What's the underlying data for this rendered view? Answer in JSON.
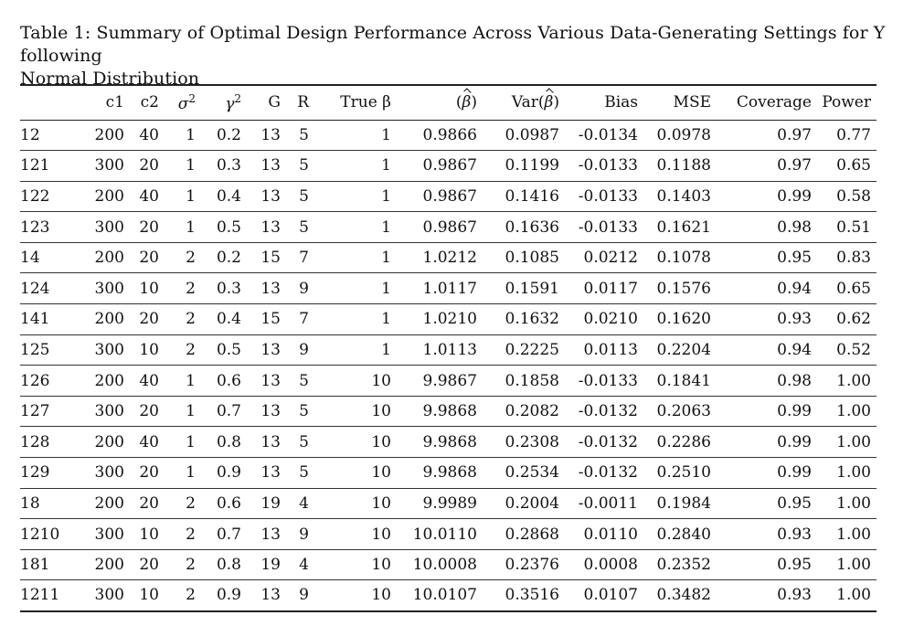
{
  "caption": {
    "line1": "Table 1: Summary of Optimal Design Performance Across Various Data-Generating Settings for Y following",
    "line2": "Normal Distribution"
  },
  "headers": {
    "id": "",
    "c1": "c1",
    "c2": "c2",
    "sigma2": "σ",
    "sigma2_exp": "2",
    "gamma2": "γ",
    "gamma2_exp": "2",
    "G": "G",
    "R": "R",
    "true_beta": "True β",
    "beta_hat_open": "(",
    "beta_hat_sym": "β",
    "beta_hat_close": ")",
    "var_prefix": "Var(",
    "var_sym": "β",
    "var_close": ")",
    "bias": "Bias",
    "mse": "MSE",
    "coverage": "Coverage",
    "power": "Power"
  },
  "rows": [
    {
      "id": "12",
      "c1": "200",
      "c2": "40",
      "sigma2": "1",
      "gamma2": "0.2",
      "G": "13",
      "R": "5",
      "true_beta": "1",
      "beta_hat": "0.9866",
      "var": "0.0987",
      "bias": "-0.0134",
      "mse": "0.0978",
      "coverage": "0.97",
      "power": "0.77"
    },
    {
      "id": "121",
      "c1": "300",
      "c2": "20",
      "sigma2": "1",
      "gamma2": "0.3",
      "G": "13",
      "R": "5",
      "true_beta": "1",
      "beta_hat": "0.9867",
      "var": "0.1199",
      "bias": "-0.0133",
      "mse": "0.1188",
      "coverage": "0.97",
      "power": "0.65"
    },
    {
      "id": "122",
      "c1": "200",
      "c2": "40",
      "sigma2": "1",
      "gamma2": "0.4",
      "G": "13",
      "R": "5",
      "true_beta": "1",
      "beta_hat": "0.9867",
      "var": "0.1416",
      "bias": "-0.0133",
      "mse": "0.1403",
      "coverage": "0.99",
      "power": "0.58"
    },
    {
      "id": "123",
      "c1": "300",
      "c2": "20",
      "sigma2": "1",
      "gamma2": "0.5",
      "G": "13",
      "R": "5",
      "true_beta": "1",
      "beta_hat": "0.9867",
      "var": "0.1636",
      "bias": "-0.0133",
      "mse": "0.1621",
      "coverage": "0.98",
      "power": "0.51"
    },
    {
      "id": "14",
      "c1": "200",
      "c2": "20",
      "sigma2": "2",
      "gamma2": "0.2",
      "G": "15",
      "R": "7",
      "true_beta": "1",
      "beta_hat": "1.0212",
      "var": "0.1085",
      "bias": "0.0212",
      "mse": "0.1078",
      "coverage": "0.95",
      "power": "0.83"
    },
    {
      "id": "124",
      "c1": "300",
      "c2": "10",
      "sigma2": "2",
      "gamma2": "0.3",
      "G": "13",
      "R": "9",
      "true_beta": "1",
      "beta_hat": "1.0117",
      "var": "0.1591",
      "bias": "0.0117",
      "mse": "0.1576",
      "coverage": "0.94",
      "power": "0.65"
    },
    {
      "id": "141",
      "c1": "200",
      "c2": "20",
      "sigma2": "2",
      "gamma2": "0.4",
      "G": "15",
      "R": "7",
      "true_beta": "1",
      "beta_hat": "1.0210",
      "var": "0.1632",
      "bias": "0.0210",
      "mse": "0.1620",
      "coverage": "0.93",
      "power": "0.62"
    },
    {
      "id": "125",
      "c1": "300",
      "c2": "10",
      "sigma2": "2",
      "gamma2": "0.5",
      "G": "13",
      "R": "9",
      "true_beta": "1",
      "beta_hat": "1.0113",
      "var": "0.2225",
      "bias": "0.0113",
      "mse": "0.2204",
      "coverage": "0.94",
      "power": "0.52"
    },
    {
      "id": "126",
      "c1": "200",
      "c2": "40",
      "sigma2": "1",
      "gamma2": "0.6",
      "G": "13",
      "R": "5",
      "true_beta": "10",
      "beta_hat": "9.9867",
      "var": "0.1858",
      "bias": "-0.0133",
      "mse": "0.1841",
      "coverage": "0.98",
      "power": "1.00"
    },
    {
      "id": "127",
      "c1": "300",
      "c2": "20",
      "sigma2": "1",
      "gamma2": "0.7",
      "G": "13",
      "R": "5",
      "true_beta": "10",
      "beta_hat": "9.9868",
      "var": "0.2082",
      "bias": "-0.0132",
      "mse": "0.2063",
      "coverage": "0.99",
      "power": "1.00"
    },
    {
      "id": "128",
      "c1": "200",
      "c2": "40",
      "sigma2": "1",
      "gamma2": "0.8",
      "G": "13",
      "R": "5",
      "true_beta": "10",
      "beta_hat": "9.9868",
      "var": "0.2308",
      "bias": "-0.0132",
      "mse": "0.2286",
      "coverage": "0.99",
      "power": "1.00"
    },
    {
      "id": "129",
      "c1": "300",
      "c2": "20",
      "sigma2": "1",
      "gamma2": "0.9",
      "G": "13",
      "R": "5",
      "true_beta": "10",
      "beta_hat": "9.9868",
      "var": "0.2534",
      "bias": "-0.0132",
      "mse": "0.2510",
      "coverage": "0.99",
      "power": "1.00"
    },
    {
      "id": "18",
      "c1": "200",
      "c2": "20",
      "sigma2": "2",
      "gamma2": "0.6",
      "G": "19",
      "R": "4",
      "true_beta": "10",
      "beta_hat": "9.9989",
      "var": "0.2004",
      "bias": "-0.0011",
      "mse": "0.1984",
      "coverage": "0.95",
      "power": "1.00"
    },
    {
      "id": "1210",
      "c1": "300",
      "c2": "10",
      "sigma2": "2",
      "gamma2": "0.7",
      "G": "13",
      "R": "9",
      "true_beta": "10",
      "beta_hat": "10.0110",
      "var": "0.2868",
      "bias": "0.0110",
      "mse": "0.2840",
      "coverage": "0.93",
      "power": "1.00"
    },
    {
      "id": "181",
      "c1": "200",
      "c2": "20",
      "sigma2": "2",
      "gamma2": "0.8",
      "G": "19",
      "R": "4",
      "true_beta": "10",
      "beta_hat": "10.0008",
      "var": "0.2376",
      "bias": "0.0008",
      "mse": "0.2352",
      "coverage": "0.95",
      "power": "1.00"
    },
    {
      "id": "1211",
      "c1": "300",
      "c2": "10",
      "sigma2": "2",
      "gamma2": "0.9",
      "G": "13",
      "R": "9",
      "true_beta": "10",
      "beta_hat": "10.0107",
      "var": "0.3516",
      "bias": "0.0107",
      "mse": "0.3482",
      "coverage": "0.93",
      "power": "1.00"
    }
  ]
}
